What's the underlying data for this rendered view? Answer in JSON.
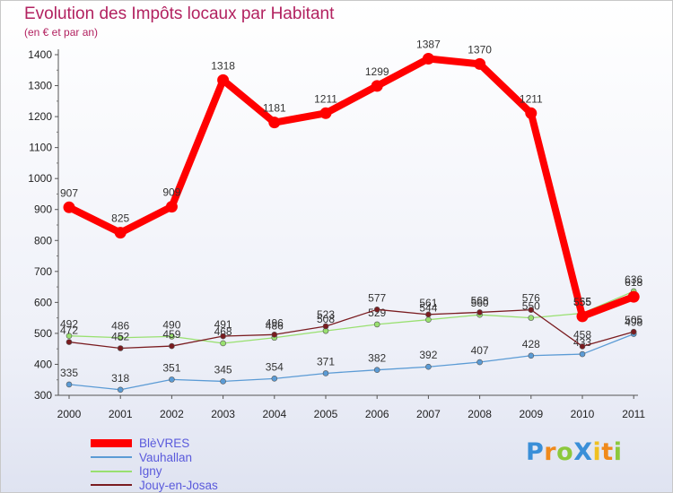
{
  "chart_data": {
    "type": "line",
    "title": "Evolution des Impôts locaux par Habitant",
    "subtitle": "(en € et par an)",
    "xlabel": "",
    "ylabel": "",
    "ylim": [
      300,
      1400
    ],
    "yticks": [
      300,
      400,
      500,
      600,
      700,
      800,
      900,
      1000,
      1100,
      1200,
      1300,
      1400
    ],
    "categories": [
      "2000",
      "2001",
      "2002",
      "2003",
      "2004",
      "2005",
      "2006",
      "2007",
      "2008",
      "2009",
      "2010",
      "2011"
    ],
    "series": [
      {
        "name": "Vauhallan",
        "color": "#5b9bd5",
        "emphasis": "thin",
        "values": [
          335,
          318,
          351,
          345,
          354,
          371,
          382,
          392,
          407,
          428,
          433,
          498
        ],
        "labels": [
          "335",
          "318",
          "351",
          "345",
          "354",
          "371",
          "382",
          "392",
          "407",
          "428",
          "433",
          "498"
        ]
      },
      {
        "name": "Igny",
        "color": "#99e070",
        "emphasis": "thin",
        "values": [
          492,
          486,
          490,
          468,
          486,
          508,
          529,
          544,
          560,
          550,
          565,
          636
        ],
        "labels": [
          "492",
          "486",
          "490",
          "468",
          "486",
          "508",
          "529",
          "544",
          "560",
          "550",
          "565",
          "636"
        ]
      },
      {
        "name": "Jouy-en-Josas",
        "color": "#7a1c20",
        "emphasis": "thin",
        "values": [
          472,
          452,
          459,
          491,
          496,
          523,
          577,
          561,
          568,
          576,
          458,
          505
        ],
        "labels": [
          "472",
          "452",
          "459",
          "491",
          "496",
          "523",
          "577",
          "561",
          "568",
          "576",
          "458",
          "505"
        ]
      },
      {
        "name": "BlèVRES",
        "color": "#ff0000",
        "emphasis": "bold",
        "values": [
          907,
          825,
          909,
          1318,
          1181,
          1211,
          1299,
          1387,
          1370,
          1211,
          555,
          618
        ],
        "labels": [
          "907",
          "825",
          "909",
          "1318",
          "1181",
          "1211",
          "1299",
          "1387",
          "1370",
          "1211",
          "555",
          "618"
        ]
      }
    ],
    "legend": {
      "placement": "bottom-left",
      "items": [
        {
          "name": "BlèVRES",
          "color": "#ff0000",
          "thick": true
        },
        {
          "name": "Vauhallan",
          "color": "#5b9bd5",
          "thick": false
        },
        {
          "name": "Igny",
          "color": "#99e070",
          "thick": false
        },
        {
          "name": "Jouy-en-Josas",
          "color": "#7a1c20",
          "thick": false
        }
      ]
    }
  },
  "branding": {
    "logo_text": "ProXiti",
    "logo_letters": [
      {
        "ch": "P",
        "color": "#3a8fd8"
      },
      {
        "ch": "r",
        "color": "#f08a1c"
      },
      {
        "ch": "o",
        "color": "#8cc83c"
      },
      {
        "ch": "X",
        "color": "#3a8fd8"
      },
      {
        "ch": "i",
        "color": "#f0c020"
      },
      {
        "ch": "t",
        "color": "#f08a1c"
      },
      {
        "ch": "i",
        "color": "#8cc83c"
      }
    ]
  }
}
